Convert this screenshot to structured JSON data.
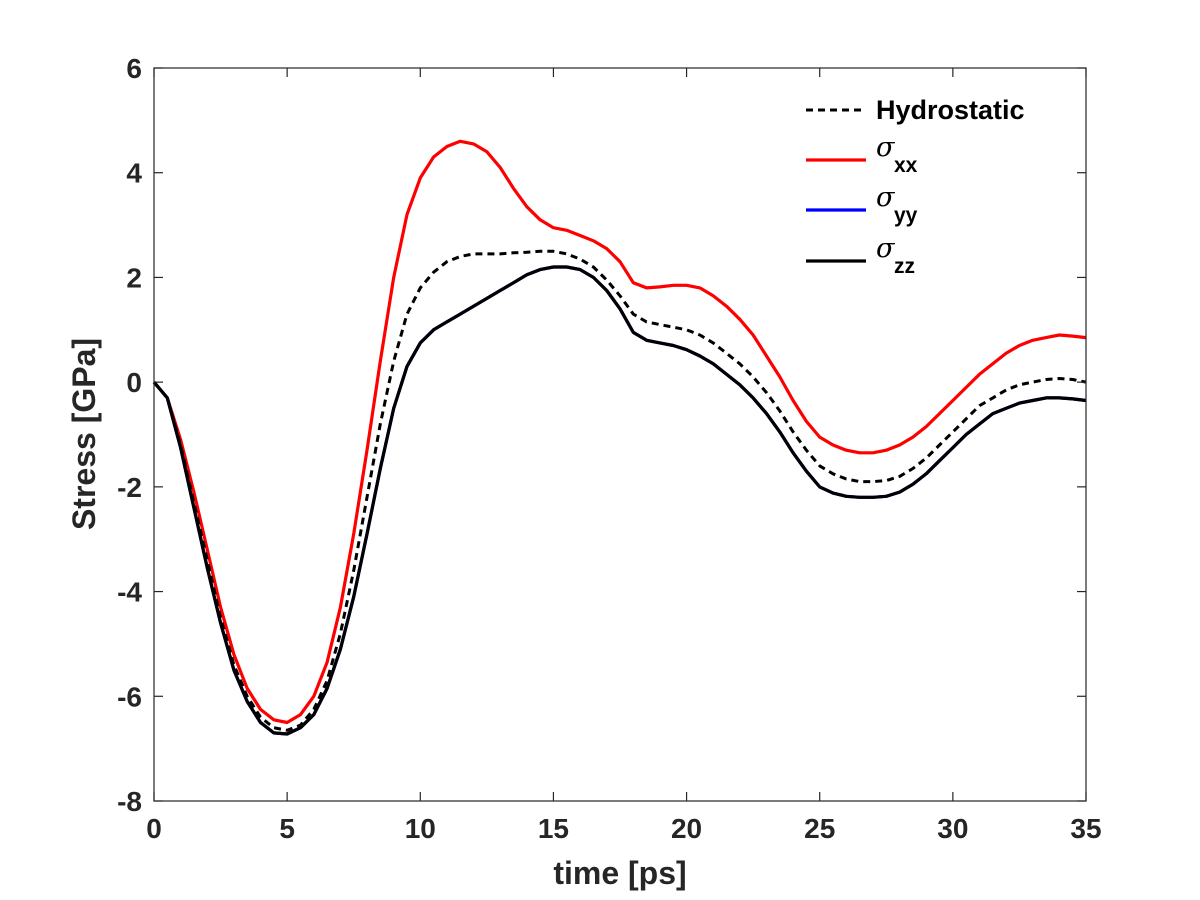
{
  "chart_data": {
    "type": "line",
    "title": "",
    "xlabel": "time [ps]",
    "ylabel": "Stress [GPa]",
    "xlim": [
      0,
      35
    ],
    "ylim": [
      -8,
      6
    ],
    "xticks": [
      0,
      5,
      10,
      15,
      20,
      25,
      30,
      35
    ],
    "yticks": [
      -8,
      -6,
      -4,
      -2,
      0,
      2,
      4,
      6
    ],
    "xtick_labels": [
      "0",
      "5",
      "10",
      "15",
      "20",
      "25",
      "30",
      "35"
    ],
    "ytick_labels": [
      "-8",
      "-6",
      "-4",
      "-2",
      "0",
      "2",
      "4",
      "6"
    ],
    "grid": false,
    "legend_position": "top-right",
    "series": [
      {
        "name": "Hydrostatic",
        "label_main": "Hydrostatic",
        "label_sub": "",
        "color": "#000000",
        "style": "dashed",
        "x": [
          0,
          0.5,
          1,
          1.5,
          2,
          2.5,
          3,
          3.5,
          4,
          4.5,
          5,
          5.5,
          6,
          6.5,
          7,
          7.5,
          8,
          8.5,
          9,
          9.5,
          10,
          10.5,
          11,
          11.5,
          12,
          12.5,
          13,
          13.5,
          14,
          14.5,
          15,
          15.5,
          16,
          16.5,
          17,
          17.5,
          18,
          18.5,
          19,
          19.5,
          20,
          20.5,
          21,
          21.5,
          22,
          22.5,
          23,
          23.5,
          24,
          24.5,
          25,
          25.5,
          26,
          26.5,
          27,
          27.5,
          28,
          28.5,
          29,
          29.5,
          30,
          30.5,
          31,
          31.5,
          32,
          32.5,
          33,
          33.5,
          34,
          34.5,
          35
        ],
        "y": [
          0,
          -0.3,
          -1.2,
          -2.3,
          -3.4,
          -4.5,
          -5.4,
          -6.0,
          -6.4,
          -6.6,
          -6.65,
          -6.55,
          -6.25,
          -5.7,
          -4.8,
          -3.6,
          -2.2,
          -0.8,
          0.4,
          1.3,
          1.8,
          2.1,
          2.3,
          2.4,
          2.45,
          2.45,
          2.45,
          2.47,
          2.48,
          2.5,
          2.5,
          2.45,
          2.35,
          2.2,
          1.95,
          1.65,
          1.3,
          1.15,
          1.1,
          1.05,
          1.0,
          0.9,
          0.75,
          0.55,
          0.35,
          0.1,
          -0.2,
          -0.55,
          -0.95,
          -1.3,
          -1.6,
          -1.75,
          -1.85,
          -1.9,
          -1.9,
          -1.88,
          -1.8,
          -1.65,
          -1.45,
          -1.2,
          -0.95,
          -0.7,
          -0.45,
          -0.3,
          -0.15,
          -0.05,
          0.0,
          0.05,
          0.07,
          0.05,
          0.0
        ]
      },
      {
        "name": "σxx",
        "label_main": "σ",
        "label_sub": "xx",
        "color": "#ff0000",
        "style": "solid",
        "x": [
          0,
          0.5,
          1,
          1.5,
          2,
          2.5,
          3,
          3.5,
          4,
          4.5,
          5,
          5.5,
          6,
          6.5,
          7,
          7.5,
          8,
          8.5,
          9,
          9.5,
          10,
          10.5,
          11,
          11.5,
          12,
          12.5,
          13,
          13.5,
          14,
          14.5,
          15,
          15.5,
          16,
          16.5,
          17,
          17.5,
          18,
          18.5,
          19,
          19.5,
          20,
          20.5,
          21,
          21.5,
          22,
          22.5,
          23,
          23.5,
          24,
          24.5,
          25,
          25.5,
          26,
          26.5,
          27,
          27.5,
          28,
          28.5,
          29,
          29.5,
          30,
          30.5,
          31,
          31.5,
          32,
          32.5,
          33,
          33.5,
          34,
          34.5,
          35
        ],
        "y": [
          0,
          -0.3,
          -1.1,
          -2.1,
          -3.2,
          -4.3,
          -5.2,
          -5.85,
          -6.25,
          -6.45,
          -6.5,
          -6.35,
          -6.0,
          -5.35,
          -4.3,
          -2.9,
          -1.3,
          0.4,
          2.0,
          3.2,
          3.9,
          4.3,
          4.5,
          4.6,
          4.55,
          4.4,
          4.1,
          3.7,
          3.35,
          3.1,
          2.95,
          2.9,
          2.8,
          2.7,
          2.55,
          2.3,
          1.9,
          1.8,
          1.82,
          1.85,
          1.85,
          1.8,
          1.65,
          1.45,
          1.2,
          0.9,
          0.5,
          0.1,
          -0.35,
          -0.75,
          -1.05,
          -1.2,
          -1.3,
          -1.35,
          -1.35,
          -1.3,
          -1.2,
          -1.05,
          -0.85,
          -0.6,
          -0.35,
          -0.1,
          0.15,
          0.35,
          0.55,
          0.7,
          0.8,
          0.85,
          0.9,
          0.88,
          0.85
        ]
      },
      {
        "name": "σyy",
        "label_main": "σ",
        "label_sub": "yy",
        "color": "#0000ff",
        "style": "solid",
        "x": [
          0,
          0.5,
          1,
          1.5,
          2,
          2.5,
          3,
          3.5,
          4,
          4.5,
          5,
          5.5,
          6,
          6.5,
          7,
          7.5,
          8,
          8.5,
          9,
          9.5,
          10,
          10.5,
          11,
          11.5,
          12,
          12.5,
          13,
          13.5,
          14,
          14.5,
          15,
          15.5,
          16,
          16.5,
          17,
          17.5,
          18,
          18.5,
          19,
          19.5,
          20,
          20.5,
          21,
          21.5,
          22,
          22.5,
          23,
          23.5,
          24,
          24.5,
          25,
          25.5,
          26,
          26.5,
          27,
          27.5,
          28,
          28.5,
          29,
          29.5,
          30,
          30.5,
          31,
          31.5,
          32,
          32.5,
          33,
          33.5,
          34,
          34.5,
          35
        ],
        "y": [
          0,
          -0.3,
          -1.25,
          -2.4,
          -3.55,
          -4.6,
          -5.5,
          -6.1,
          -6.5,
          -6.7,
          -6.72,
          -6.6,
          -6.35,
          -5.85,
          -5.1,
          -4.1,
          -2.9,
          -1.65,
          -0.5,
          0.3,
          0.75,
          1.0,
          1.15,
          1.3,
          1.45,
          1.6,
          1.75,
          1.9,
          2.05,
          2.15,
          2.2,
          2.2,
          2.15,
          2.0,
          1.75,
          1.4,
          0.95,
          0.8,
          0.75,
          0.7,
          0.62,
          0.5,
          0.35,
          0.15,
          -0.05,
          -0.3,
          -0.6,
          -0.95,
          -1.35,
          -1.7,
          -2.0,
          -2.12,
          -2.18,
          -2.2,
          -2.2,
          -2.18,
          -2.1,
          -1.95,
          -1.75,
          -1.5,
          -1.25,
          -1.0,
          -0.8,
          -0.6,
          -0.5,
          -0.4,
          -0.35,
          -0.3,
          -0.3,
          -0.32,
          -0.35
        ]
      },
      {
        "name": "σzz",
        "label_main": "σ",
        "label_sub": "zz",
        "color": "#000000",
        "style": "solid",
        "x": [
          0,
          0.5,
          1,
          1.5,
          2,
          2.5,
          3,
          3.5,
          4,
          4.5,
          5,
          5.5,
          6,
          6.5,
          7,
          7.5,
          8,
          8.5,
          9,
          9.5,
          10,
          10.5,
          11,
          11.5,
          12,
          12.5,
          13,
          13.5,
          14,
          14.5,
          15,
          15.5,
          16,
          16.5,
          17,
          17.5,
          18,
          18.5,
          19,
          19.5,
          20,
          20.5,
          21,
          21.5,
          22,
          22.5,
          23,
          23.5,
          24,
          24.5,
          25,
          25.5,
          26,
          26.5,
          27,
          27.5,
          28,
          28.5,
          29,
          29.5,
          30,
          30.5,
          31,
          31.5,
          32,
          32.5,
          33,
          33.5,
          34,
          34.5,
          35
        ],
        "y": [
          0,
          -0.3,
          -1.25,
          -2.4,
          -3.55,
          -4.6,
          -5.5,
          -6.1,
          -6.5,
          -6.7,
          -6.72,
          -6.6,
          -6.35,
          -5.85,
          -5.1,
          -4.1,
          -2.9,
          -1.65,
          -0.5,
          0.3,
          0.75,
          1.0,
          1.15,
          1.3,
          1.45,
          1.6,
          1.75,
          1.9,
          2.05,
          2.15,
          2.2,
          2.2,
          2.15,
          2.0,
          1.75,
          1.4,
          0.95,
          0.8,
          0.75,
          0.7,
          0.62,
          0.5,
          0.35,
          0.15,
          -0.05,
          -0.3,
          -0.6,
          -0.95,
          -1.35,
          -1.7,
          -2.0,
          -2.12,
          -2.18,
          -2.2,
          -2.2,
          -2.18,
          -2.1,
          -1.95,
          -1.75,
          -1.5,
          -1.25,
          -1.0,
          -0.8,
          -0.6,
          -0.5,
          -0.4,
          -0.35,
          -0.3,
          -0.3,
          -0.32,
          -0.35
        ]
      }
    ]
  }
}
